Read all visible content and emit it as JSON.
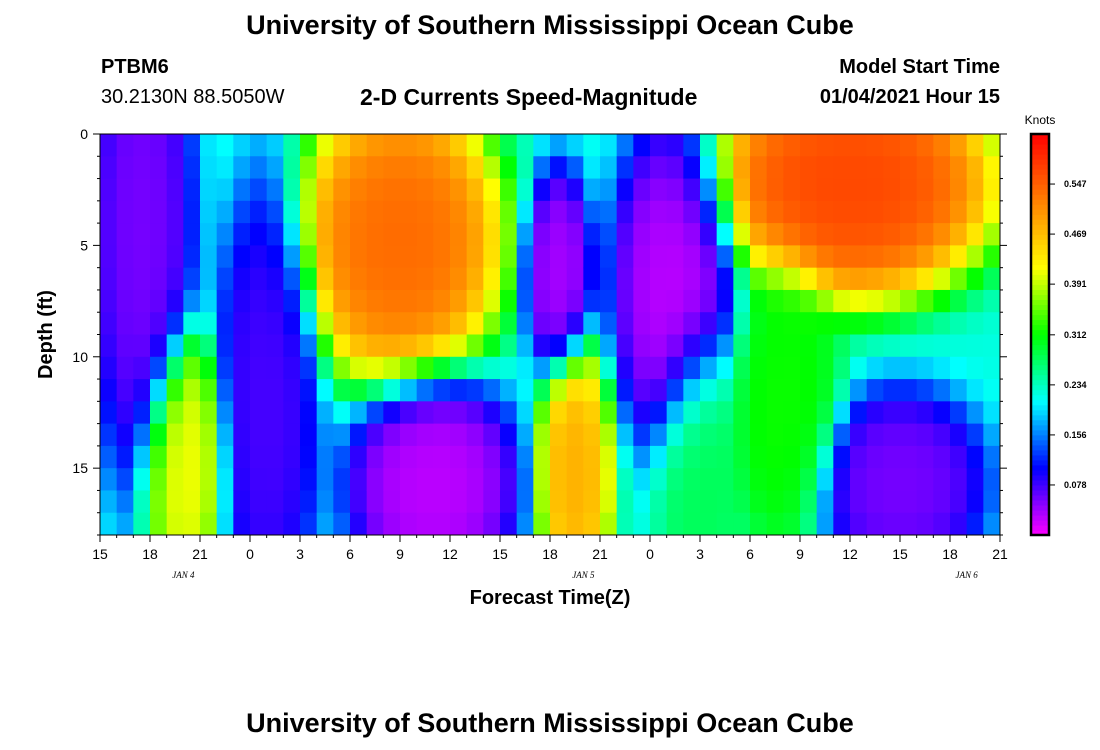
{
  "header": {
    "title": "University of Southern Mississippi Ocean Cube",
    "station_id": "PTBM6",
    "station_coords": "30.2130N 88.5050W",
    "subtitle": "2-D Currents Speed-Magnitude",
    "start_label": "Model Start Time",
    "start_value": "01/04/2021 Hour 15"
  },
  "footer": {
    "title": "University of Southern Mississippi Ocean Cube"
  },
  "chart_data": {
    "type": "heatmap",
    "xlabel": "Forecast Time(Z)",
    "ylabel": "Depth (ft)",
    "x_tick_labels": [
      "15",
      "18",
      "21",
      "0",
      "3",
      "6",
      "9",
      "12",
      "15",
      "18",
      "21",
      "0",
      "3",
      "6",
      "9",
      "12",
      "15",
      "18",
      "21"
    ],
    "x_hours": [
      15,
      18,
      21,
      24,
      27,
      30,
      33,
      36,
      39,
      42,
      45,
      48,
      51,
      54,
      57,
      60,
      63,
      66,
      69
    ],
    "date_labels": [
      {
        "label": "JAN 4",
        "hour": 20
      },
      {
        "label": "JAN 5",
        "hour": 44
      },
      {
        "label": "JAN 6",
        "hour": 67
      }
    ],
    "y_ticks": [
      0,
      5,
      10,
      15
    ],
    "ylim": [
      0,
      18
    ],
    "xlim": [
      15,
      69
    ],
    "colorbar": {
      "units": "Knots",
      "range": [
        0,
        0.625
      ],
      "tick_values": [
        0.078,
        0.156,
        0.234,
        0.312,
        0.391,
        0.469,
        0.547
      ],
      "colors": [
        "#ff00ff",
        "#0000ff",
        "#00ffff",
        "#00ff00",
        "#ffff00",
        "#ff8000",
        "#ff0000"
      ]
    },
    "depth_rows": [
      0.25,
      1.25,
      2.25,
      3.25,
      4.25,
      5.25,
      6.25,
      7.25,
      8.25,
      9.25,
      10.25,
      11.25,
      12.25,
      13.25,
      14.25,
      15.25,
      16.25,
      17.25
    ],
    "features": [
      {
        "hour": 17.5,
        "depth": 4,
        "sh": 1.8,
        "sd": 7,
        "value": 0.05
      },
      {
        "hour": 20,
        "depth": 14.5,
        "sh": 1.5,
        "sd": 3.5,
        "value": 0.42
      },
      {
        "hour": 25,
        "depth": 12,
        "sh": 1.8,
        "sd": 6,
        "value": 0.07
      },
      {
        "hour": 33,
        "depth": 4.5,
        "sh": 3.5,
        "sd": 3.8,
        "value": 0.55
      },
      {
        "hour": 35,
        "depth": 15.5,
        "sh": 3,
        "sd": 3,
        "value": 0.02
      },
      {
        "hour": 42.5,
        "depth": 6,
        "sh": 1.2,
        "sd": 2.8,
        "value": 0.03
      },
      {
        "hour": 43.5,
        "depth": 15,
        "sh": 1.3,
        "sd": 3.5,
        "value": 0.49
      },
      {
        "hour": 49.5,
        "depth": 6.5,
        "sh": 2.2,
        "sd": 4.5,
        "value": 0.02
      },
      {
        "hour": 51,
        "depth": 14.5,
        "sh": 1.6,
        "sd": 4,
        "value": 0.28
      },
      {
        "hour": 56,
        "depth": 12,
        "sh": 2,
        "sd": 4,
        "value": 0.32
      },
      {
        "hour": 60,
        "depth": 2,
        "sh": 5,
        "sd": 3,
        "value": 0.58
      },
      {
        "hour": 63,
        "depth": 15.5,
        "sh": 3,
        "sd": 2.5,
        "value": 0.05
      }
    ]
  }
}
